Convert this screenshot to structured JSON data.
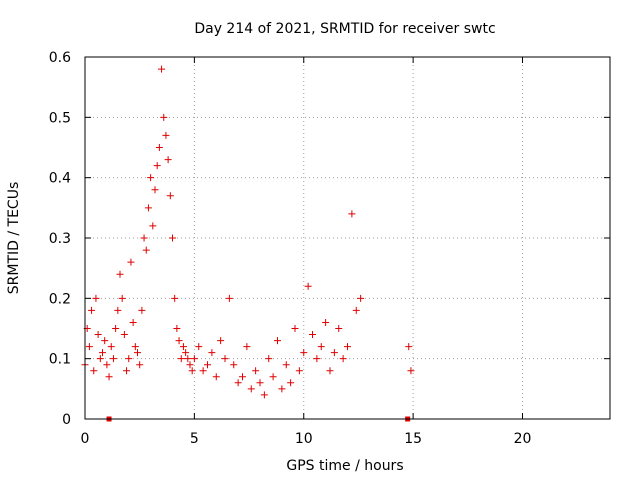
{
  "chart_data": {
    "type": "scatter",
    "title": "Day 214 of 2021, SRMTID for receiver swtc",
    "xlabel": "GPS time / hours",
    "ylabel": "SRMTID / TECUs",
    "xlim": [
      0,
      24
    ],
    "ylim": [
      0,
      0.6
    ],
    "x_ticks": [
      0,
      5,
      10,
      15,
      20
    ],
    "x_tick_labels": [
      "0",
      "5",
      "10",
      "15",
      "20"
    ],
    "y_ticks": [
      0,
      0.1,
      0.2,
      0.3,
      0.4,
      0.5,
      0.6
    ],
    "y_tick_labels": [
      "0",
      "0.1",
      "0.2",
      "0.3",
      "0.4",
      "0.5",
      "0.6"
    ],
    "grid": true,
    "marker": "plus",
    "color": "#e00000",
    "zero_markers_x": [
      1.1,
      14.75
    ],
    "series": [
      {
        "name": "SRMTID",
        "x": [
          0.0,
          0.1,
          0.2,
          0.3,
          0.4,
          0.5,
          0.6,
          0.7,
          0.8,
          0.9,
          1.0,
          1.1,
          1.2,
          1.3,
          1.4,
          1.5,
          1.6,
          1.7,
          1.8,
          1.9,
          2.0,
          2.1,
          2.2,
          2.3,
          2.4,
          2.5,
          2.6,
          2.7,
          2.8,
          2.9,
          3.0,
          3.1,
          3.2,
          3.3,
          3.4,
          3.5,
          3.6,
          3.7,
          3.8,
          3.9,
          4.0,
          4.1,
          4.2,
          4.3,
          4.4,
          4.5,
          4.6,
          4.7,
          4.8,
          4.9,
          5.0,
          5.2,
          5.4,
          5.6,
          5.8,
          6.0,
          6.2,
          6.4,
          6.6,
          6.8,
          7.0,
          7.2,
          7.4,
          7.6,
          7.8,
          8.0,
          8.2,
          8.4,
          8.6,
          8.8,
          9.0,
          9.2,
          9.4,
          9.6,
          9.8,
          10.0,
          10.2,
          10.4,
          10.6,
          10.8,
          11.0,
          11.2,
          11.4,
          11.6,
          11.8,
          12.0,
          12.2,
          12.4,
          12.6,
          14.8,
          14.9
        ],
        "values": [
          0.09,
          0.15,
          0.12,
          0.18,
          0.08,
          0.2,
          0.14,
          0.1,
          0.11,
          0.13,
          0.09,
          0.07,
          0.12,
          0.1,
          0.15,
          0.18,
          0.24,
          0.2,
          0.14,
          0.08,
          0.1,
          0.26,
          0.16,
          0.12,
          0.11,
          0.09,
          0.18,
          0.3,
          0.28,
          0.35,
          0.4,
          0.32,
          0.38,
          0.42,
          0.45,
          0.58,
          0.5,
          0.47,
          0.43,
          0.37,
          0.3,
          0.2,
          0.15,
          0.13,
          0.1,
          0.12,
          0.11,
          0.1,
          0.09,
          0.08,
          0.1,
          0.12,
          0.08,
          0.09,
          0.11,
          0.07,
          0.13,
          0.1,
          0.2,
          0.09,
          0.06,
          0.07,
          0.12,
          0.05,
          0.08,
          0.06,
          0.04,
          0.1,
          0.07,
          0.13,
          0.05,
          0.09,
          0.06,
          0.15,
          0.08,
          0.11,
          0.22,
          0.14,
          0.1,
          0.12,
          0.16,
          0.08,
          0.11,
          0.15,
          0.1,
          0.12,
          0.34,
          0.18,
          0.2,
          0.12,
          0.08
        ]
      }
    ]
  }
}
